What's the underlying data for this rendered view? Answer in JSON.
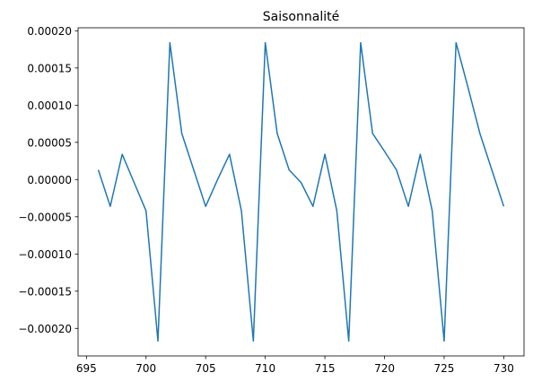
{
  "chart_data": {
    "type": "line",
    "title": "Saisonnalité",
    "xlabel": "",
    "ylabel": "",
    "x": [
      696,
      697,
      698,
      699,
      700,
      701,
      702,
      703,
      704,
      705,
      706,
      707,
      708,
      709,
      710,
      711,
      712,
      713,
      714,
      715,
      716,
      717,
      718,
      719,
      720,
      721,
      722,
      723,
      724,
      725,
      726,
      727,
      728,
      729,
      730
    ],
    "series": [
      {
        "values": [
          1.3e-05,
          -3.6e-05,
          3.4e-05,
          -4e-06,
          -4.2e-05,
          -0.000217,
          0.000184,
          6.2e-05,
          1.3e-05,
          -3.6e-05,
          0.0,
          3.4e-05,
          -4.2e-05,
          -0.000217,
          0.000184,
          6.2e-05,
          1.3e-05,
          -4e-06,
          -3.6e-05,
          3.4e-05,
          -4.2e-05,
          -0.000217,
          0.000184,
          6.2e-05,
          3.8e-05,
          1.3e-05,
          -3.6e-05,
          3.4e-05,
          -4.2e-05,
          -0.000217,
          0.000184,
          0.000124,
          6.2e-05,
          1.3e-05,
          -3.6e-05
        ],
        "color": "#1f77b4"
      }
    ],
    "xlim": [
      694.3,
      731.7
    ],
    "ylim": [
      -0.000237,
      0.000204
    ],
    "x_ticks": [
      695,
      700,
      705,
      710,
      715,
      720,
      725,
      730
    ],
    "x_tick_labels": [
      "695",
      "700",
      "705",
      "710",
      "715",
      "720",
      "725",
      "730"
    ],
    "y_ticks": [
      0.0002,
      0.00015,
      0.0001,
      5e-05,
      0.0,
      -5e-05,
      -0.0001,
      -0.00015,
      -0.0002
    ],
    "y_tick_labels": [
      "0.00020",
      "0.00015",
      "0.00010",
      "0.00005",
      "0.00000",
      "−0.00005",
      "−0.00010",
      "−0.00015",
      "−0.00020"
    ],
    "grid": false,
    "legend": "none"
  }
}
